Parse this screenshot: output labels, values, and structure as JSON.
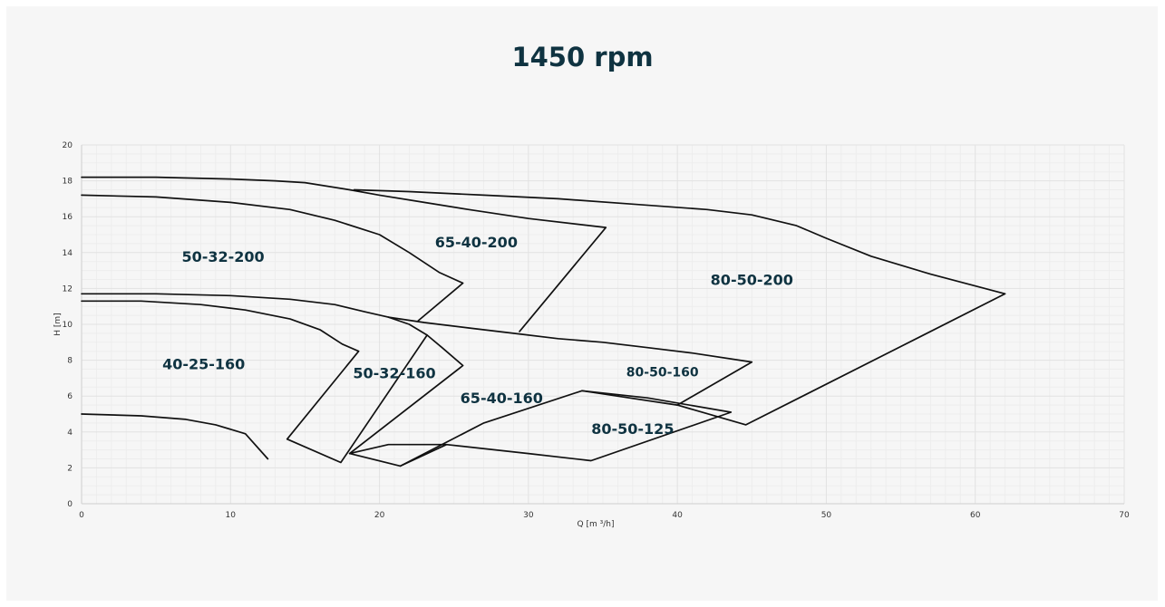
{
  "chart_data": {
    "type": "line",
    "title": "1450 rpm",
    "xlabel": "Q [m ³/h]",
    "ylabel": "H [m]",
    "xlim": [
      0,
      70
    ],
    "ylim": [
      0,
      20
    ],
    "x_ticks": [
      0,
      10,
      20,
      30,
      40,
      50,
      60,
      70
    ],
    "y_ticks": [
      0,
      2,
      4,
      6,
      8,
      10,
      12,
      14,
      16,
      18,
      20
    ],
    "grid": true,
    "series": [
      {
        "name": "80-50-200",
        "points": [
          [
            18.3,
            17.5
          ],
          [
            22,
            17.4
          ],
          [
            27,
            17.2
          ],
          [
            32,
            17
          ],
          [
            37,
            16.7
          ],
          [
            42,
            16.4
          ],
          [
            45,
            16.1
          ],
          [
            48,
            15.5
          ],
          [
            50,
            14.8
          ],
          [
            53,
            13.8
          ],
          [
            57,
            12.8
          ],
          [
            62,
            11.7
          ],
          [
            44.6,
            4.4
          ],
          [
            40,
            5.5
          ]
        ]
      },
      {
        "name": "65-40-200",
        "points": [
          [
            0,
            18.2
          ],
          [
            5,
            18.2
          ],
          [
            10,
            18.1
          ],
          [
            13,
            18
          ],
          [
            15,
            17.9
          ],
          [
            18,
            17.5
          ],
          [
            20,
            17.2
          ],
          [
            23,
            16.8
          ],
          [
            26,
            16.4
          ],
          [
            30,
            15.9
          ],
          [
            35.2,
            15.4
          ],
          [
            29.4,
            9.6
          ]
        ]
      },
      {
        "name": "50-32-200",
        "points": [
          [
            0,
            17.2
          ],
          [
            5,
            17.1
          ],
          [
            10,
            16.8
          ],
          [
            14,
            16.4
          ],
          [
            17,
            15.8
          ],
          [
            20,
            15
          ],
          [
            22,
            14
          ],
          [
            24,
            12.9
          ],
          [
            25.6,
            12.3
          ],
          [
            22.6,
            10.2
          ]
        ]
      },
      {
        "name": "80-50-160",
        "points": [
          [
            20.6,
            10.4
          ],
          [
            23,
            10.1
          ],
          [
            26,
            9.8
          ],
          [
            29,
            9.5
          ],
          [
            32,
            9.2
          ],
          [
            35,
            9
          ],
          [
            38,
            8.7
          ],
          [
            41,
            8.4
          ],
          [
            45,
            7.9
          ],
          [
            40,
            5.5
          ],
          [
            33.6,
            6.3
          ]
        ]
      },
      {
        "name": "65-40-160",
        "points": [
          [
            0,
            11.7
          ],
          [
            5,
            11.7
          ],
          [
            10,
            11.6
          ],
          [
            14,
            11.4
          ],
          [
            17,
            11.1
          ],
          [
            19,
            10.7
          ],
          [
            20.6,
            10.4
          ],
          [
            22,
            10
          ],
          [
            23.2,
            9.4
          ],
          [
            24.2,
            8.7
          ],
          [
            25.6,
            7.7
          ],
          [
            18,
            2.8
          ]
        ]
      },
      {
        "name": "50-32-160",
        "points": [
          [
            0,
            11.3
          ],
          [
            4,
            11.3
          ],
          [
            8,
            11.1
          ],
          [
            11,
            10.8
          ],
          [
            14,
            10.3
          ],
          [
            16,
            9.7
          ],
          [
            17.5,
            8.9
          ],
          [
            18.6,
            8.5
          ],
          [
            13.8,
            3.6
          ],
          [
            17.4,
            2.3
          ],
          [
            23.2,
            9.4
          ]
        ]
      },
      {
        "name": "80-50-125",
        "points": [
          [
            33.6,
            6.3
          ],
          [
            38,
            5.9
          ],
          [
            43.6,
            5.1
          ],
          [
            34.2,
            2.4
          ],
          [
            30,
            2.8
          ],
          [
            24.5,
            3.3
          ],
          [
            21.4,
            2.1
          ],
          [
            18,
            2.8
          ],
          [
            20.6,
            3.3
          ],
          [
            24.5,
            3.3
          ]
        ]
      },
      {
        "name": "40-25-160",
        "points": [
          [
            0,
            5
          ],
          [
            4,
            4.9
          ],
          [
            7,
            4.7
          ],
          [
            9,
            4.4
          ],
          [
            11,
            3.9
          ],
          [
            12.5,
            2.5
          ]
        ]
      },
      {
        "name": "",
        "points": [
          [
            21.4,
            2.1
          ],
          [
            27,
            4.5
          ],
          [
            33.6,
            6.3
          ]
        ]
      }
    ],
    "region_labels": [
      {
        "text": "50-32-200",
        "q": 9.5,
        "h": 13.8
      },
      {
        "text": "65-40-200",
        "q": 26.5,
        "h": 14.6
      },
      {
        "text": "80-50-200",
        "q": 45,
        "h": 12.5
      },
      {
        "text": "40-25-160",
        "q": 8.2,
        "h": 7.8
      },
      {
        "text": "50-32-160",
        "q": 21,
        "h": 7.3
      },
      {
        "text": "65-40-160",
        "q": 28.2,
        "h": 5.9
      },
      {
        "text": "80-50-160",
        "q": 39,
        "h": 7.4
      },
      {
        "text": "80-50-125",
        "q": 37,
        "h": 4.2
      }
    ]
  }
}
